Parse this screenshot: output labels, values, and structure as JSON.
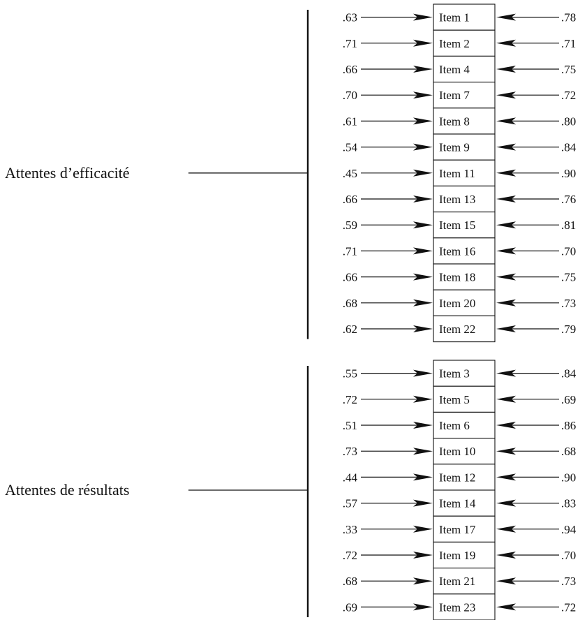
{
  "factors": [
    {
      "label": "Attentes d’efficacité",
      "items": [
        {
          "left": ".63",
          "item": "Item 1",
          "right": ".78"
        },
        {
          "left": ".71",
          "item": "Item 2",
          "right": ".71"
        },
        {
          "left": ".66",
          "item": "Item 4",
          "right": ".75"
        },
        {
          "left": ".70",
          "item": "Item 7",
          "right": ".72"
        },
        {
          "left": ".61",
          "item": "Item 8",
          "right": ".80"
        },
        {
          "left": ".54",
          "item": "Item 9",
          "right": ".84"
        },
        {
          "left": ".45",
          "item": "Item 11",
          "right": ".90"
        },
        {
          "left": ".66",
          "item": "Item 13",
          "right": ".76"
        },
        {
          "left": ".59",
          "item": "Item 15",
          "right": ".81"
        },
        {
          "left": ".71",
          "item": "Item 16",
          "right": ".70"
        },
        {
          "left": ".66",
          "item": "Item 18",
          "right": ".75"
        },
        {
          "left": ".68",
          "item": "Item 20",
          "right": ".73"
        },
        {
          "left": ".62",
          "item": "Item 22",
          "right": ".79"
        }
      ]
    },
    {
      "label": "Attentes de résultats",
      "items": [
        {
          "left": ".55",
          "item": "Item 3",
          "right": ".84"
        },
        {
          "left": ".72",
          "item": "Item 5",
          "right": ".69"
        },
        {
          "left": ".51",
          "item": "Item 6",
          "right": ".86"
        },
        {
          "left": ".73",
          "item": "Item 10",
          "right": ".68"
        },
        {
          "left": ".44",
          "item": "Item 12",
          "right": ".90"
        },
        {
          "left": ".57",
          "item": "Item 14",
          "right": ".83"
        },
        {
          "left": ".33",
          "item": "Item 17",
          "right": ".94"
        },
        {
          "left": ".72",
          "item": "Item 19",
          "right": ".70"
        },
        {
          "left": ".68",
          "item": "Item 21",
          "right": ".73"
        },
        {
          "left": ".69",
          "item": "Item 23",
          "right": ".72"
        }
      ]
    }
  ]
}
